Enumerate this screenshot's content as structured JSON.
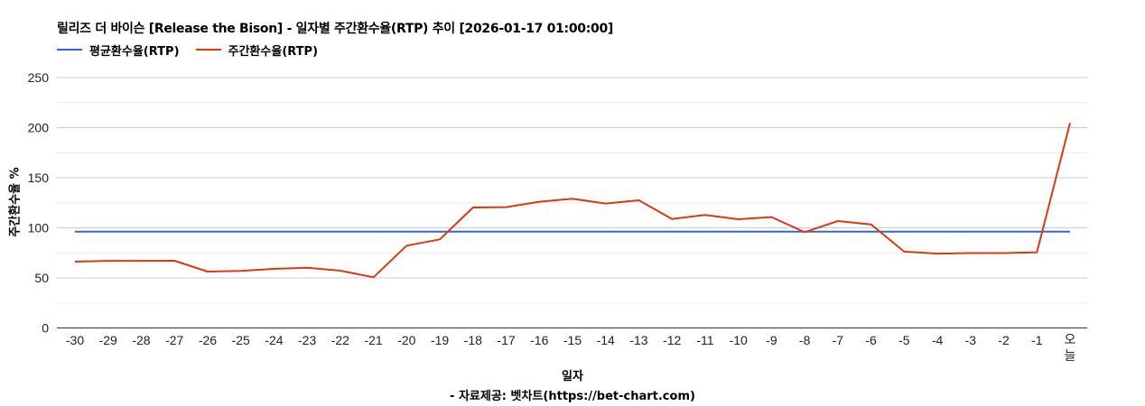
{
  "chart": {
    "title": "릴리즈 더 바이슨 [Release the Bison] - 일자별 주간환수율(RTP) 추이 [2026-01-17 01:00:00]",
    "legend": [
      {
        "label": "평균환수율(RTP)",
        "color": "#3366cc"
      },
      {
        "label": "주간환수율(RTP)",
        "color": "#dc3912"
      }
    ],
    "xlabel": "일자",
    "ylabel": "주간환수율 %",
    "source": "- 자료제공: 벳차트(https://bet-chart.com)"
  },
  "chart_data": {
    "type": "line",
    "title": "릴리즈 더 바이슨 [Release the Bison] - 일자별 주간환수율(RTP) 추이 [2026-01-17 01:00:00]",
    "xlabel": "일자",
    "ylabel": "주간환수율 %",
    "ylim": [
      0,
      250
    ],
    "yticks": [
      0,
      50,
      100,
      150,
      200,
      250
    ],
    "grid": true,
    "legend_position": "top",
    "categories": [
      "-30",
      "-29",
      "-28",
      "-27",
      "-26",
      "-25",
      "-24",
      "-23",
      "-22",
      "-21",
      "-20",
      "-19",
      "-18",
      "-17",
      "-16",
      "-15",
      "-14",
      "-13",
      "-12",
      "-11",
      "-10",
      "-9",
      "-8",
      "-7",
      "-6",
      "-5",
      "-4",
      "-3",
      "-2",
      "-1",
      "오늘"
    ],
    "series": [
      {
        "name": "평균환수율(RTP)",
        "color": "#3366cc",
        "values": [
          96.2,
          96.2,
          96.2,
          96.2,
          96.2,
          96.2,
          96.2,
          96.2,
          96.2,
          96.2,
          96.2,
          96.2,
          96.2,
          96.2,
          96.2,
          96.2,
          96.2,
          96.2,
          96.2,
          96.2,
          96.2,
          96.2,
          96.2,
          96.2,
          96.2,
          96.2,
          96.2,
          96.2,
          96.2,
          96.2,
          96.2
        ]
      },
      {
        "name": "주간환수율(RTP)",
        "color": "#dc3912",
        "values": [
          66.2,
          67.0,
          67.0,
          67.1,
          56.3,
          57.0,
          59.0,
          60.2,
          57.2,
          50.6,
          82.2,
          88.5,
          120.3,
          120.6,
          126.0,
          129.0,
          124.2,
          127.5,
          108.8,
          112.9,
          108.6,
          110.7,
          95.7,
          106.8,
          103.4,
          76.2,
          74.2,
          74.8,
          74.8,
          75.6,
          204.8
        ]
      }
    ],
    "source": "- 자료제공: 벳차트(https://bet-chart.com)"
  }
}
